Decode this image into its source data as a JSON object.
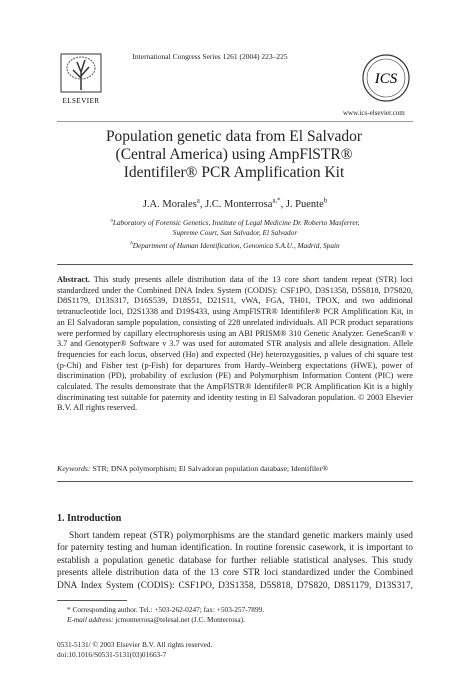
{
  "header": {
    "journal": "International Congress Series 1261 (2004) 223–225",
    "publisher": "ELSEVIER",
    "ics_logo": "ICS",
    "url": "www.ics-elsevier.com"
  },
  "title": "Population genetic data from El Salvador (Central America) using AmpFlSTR® Identifiler® PCR Amplification Kit",
  "authors": [
    {
      "name": "J.A. Morales",
      "sup": "a"
    },
    {
      "name": "J.C. Monterrosa",
      "sup": "a,*"
    },
    {
      "name": "J. Puente",
      "sup": "b"
    }
  ],
  "affiliations": [
    {
      "mark": "a",
      "text": "Laboratory of Forensic Genetics, Institute of Legal Medicine Dr. Roberto Masferrer, Supreme Court, San Salvador, El Salvador"
    },
    {
      "mark": "b",
      "text": "Department of Human Identification, Genomica S.A.U., Madrid, Spain"
    }
  ],
  "abstract": {
    "label": "Abstract.",
    "text": "This study presents allele distribution data of the 13 core short tandem repeat (STR) loci standardized under the Combined DNA Index System (CODIS): CSF1PO, D3S1358, D5S818, D7S820, D8S1179, D13S317, D16S539, D18S51, D21S11, vWA, FGA, TH01, TPOX, and two additional tetranucleotide loci, D2S1338 and D19S433, using AmpFlSTR® Identifiler® PCR Amplification Kit, in an El Salvadoran sample population, consisting of 228 unrelated individuals. All PCR product separations were performed by capillary electrophoresis using an ABI PRISM® 310 Genetic Analyzer. GeneScan® v 3.7 and Genotyper® Software v 3.7 was used for automated STR analysis and allele designation. Allele frequencies for each locus, observed (Ho) and expected (He) heterozygosities, p values of chi square test (p-Chi) and Fisher test (p-Fish) for departures from Hardy–Weinberg expectations (HWE), power of discrimination (PD), probability of exclusion (PE) and Polymorphism Information Content (PIC) were calculated. The results demonstrate that the AmpFlSTR® Identifiler® PCR Amplification Kit is a highly discriminating test suitable for paternity and identity testing in El Salvadoran population. © 2003 Elsevier B.V. All rights reserved."
  },
  "keywords": {
    "label": "Keywords:",
    "text": "STR; DNA polymorphism; El Salvadoran population database; Identifiler®"
  },
  "section": {
    "heading": "1. Introduction",
    "text": "Short tandem repeat (STR) polymorphisms are the standard genetic markers mainly used for paternity testing and human identification. In routine forensic casework, it is important to establish a population genetic database for further reliable statistical analyses. This study presents allele distribution data of the 13 core STR loci standardized under the Combined DNA Index System (CODIS): CSF1PO, D3S1358, D5S818, D7S820, D8S1179, D13S317,"
  },
  "footnote": {
    "corresponding": "* Corresponding author. Tel.: +503-262-0247; fax: +503-257-7899.",
    "email_label": "E-mail address:",
    "email": "jcmonterrosa@telesal.net (J.C. Monterrosa)."
  },
  "footer": {
    "copyright": "0531-5131/ © 2003 Elsevier B.V. All rights reserved.",
    "doi": "doi:10.1016/S0531-5131(03)01663-7"
  }
}
